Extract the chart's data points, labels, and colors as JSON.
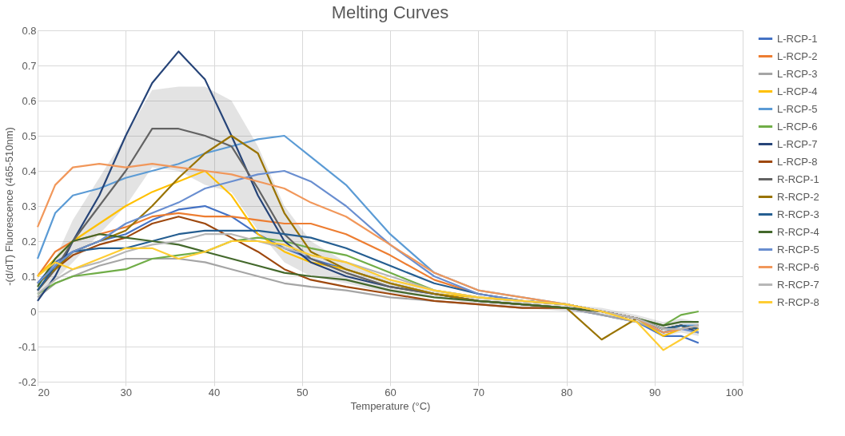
{
  "chart_data": {
    "type": "line",
    "title": "Melting Curves",
    "xlabel": "Temperature (°C)",
    "ylabel": "-(d/dT) Fluorescence (465-510nm)",
    "x": [
      20,
      22,
      24,
      27,
      30,
      33,
      36,
      39,
      42,
      45,
      48,
      51,
      55,
      60,
      65,
      70,
      75,
      80,
      84,
      88,
      91,
      93,
      95
    ],
    "xlim": [
      20,
      100
    ],
    "xticks": [
      20,
      30,
      40,
      50,
      60,
      70,
      80,
      90,
      100
    ],
    "ylim": [
      -0.2,
      0.8
    ],
    "yticks": [
      -0.2,
      -0.1,
      0,
      0.1,
      0.2,
      0.3,
      0.4,
      0.5,
      0.6,
      0.7,
      0.8
    ],
    "grid": true,
    "legend": "right",
    "line_style": "solid",
    "marker": "none",
    "series": [
      {
        "name": "L-RCP-1",
        "color": "#4472c4",
        "values": [
          0.08,
          0.14,
          0.17,
          0.2,
          0.22,
          0.26,
          0.29,
          0.3,
          0.27,
          0.22,
          0.18,
          0.15,
          0.12,
          0.08,
          0.05,
          0.03,
          0.02,
          0.01,
          -0.01,
          -0.03,
          -0.07,
          -0.07,
          -0.09
        ]
      },
      {
        "name": "L-RCP-2",
        "color": "#ed7d31",
        "values": [
          0.1,
          0.17,
          0.2,
          0.22,
          0.24,
          0.27,
          0.28,
          0.27,
          0.27,
          0.26,
          0.25,
          0.25,
          0.22,
          0.16,
          0.09,
          0.05,
          0.03,
          0.02,
          0,
          -0.02,
          -0.06,
          -0.05,
          -0.05
        ]
      },
      {
        "name": "L-RCP-3",
        "color": "#a5a5a5",
        "values": [
          0.04,
          0.08,
          0.1,
          0.13,
          0.15,
          0.15,
          0.15,
          0.14,
          0.12,
          0.1,
          0.08,
          0.07,
          0.06,
          0.04,
          0.03,
          0.02,
          0.01,
          0.01,
          -0.01,
          -0.03,
          -0.06,
          -0.05,
          -0.05
        ]
      },
      {
        "name": "L-RCP-4",
        "color": "#ffc000",
        "values": [
          0.1,
          0.15,
          0.2,
          0.25,
          0.3,
          0.34,
          0.37,
          0.4,
          0.33,
          0.22,
          0.17,
          0.14,
          0.12,
          0.08,
          0.05,
          0.04,
          0.03,
          0.02,
          0,
          -0.02,
          -0.07,
          -0.05,
          -0.04
        ]
      },
      {
        "name": "L-RCP-5",
        "color": "#5b9bd5",
        "values": [
          0.15,
          0.28,
          0.33,
          0.35,
          0.38,
          0.4,
          0.42,
          0.45,
          0.47,
          0.49,
          0.5,
          0.44,
          0.36,
          0.22,
          0.11,
          0.06,
          0.04,
          0.02,
          0,
          -0.02,
          -0.06,
          -0.04,
          -0.04
        ]
      },
      {
        "name": "L-RCP-6",
        "color": "#70ad47",
        "values": [
          0.05,
          0.08,
          0.1,
          0.11,
          0.12,
          0.15,
          0.16,
          0.17,
          0.2,
          0.21,
          0.2,
          0.18,
          0.16,
          0.11,
          0.06,
          0.04,
          0.03,
          0.02,
          0,
          -0.02,
          -0.04,
          -0.01,
          0
        ]
      },
      {
        "name": "L-RCP-7",
        "color": "#264478",
        "values": [
          0.03,
          0.1,
          0.2,
          0.33,
          0.5,
          0.65,
          0.74,
          0.66,
          0.5,
          0.33,
          0.2,
          0.14,
          0.1,
          0.07,
          0.05,
          0.03,
          0.02,
          0.01,
          0,
          -0.02,
          -0.05,
          -0.04,
          -0.06
        ]
      },
      {
        "name": "L-RCP-8",
        "color": "#9e480e",
        "values": [
          0.06,
          0.12,
          0.16,
          0.19,
          0.21,
          0.25,
          0.27,
          0.25,
          0.21,
          0.17,
          0.12,
          0.09,
          0.07,
          0.05,
          0.03,
          0.02,
          0.01,
          0.01,
          0,
          -0.02,
          -0.05,
          -0.04,
          -0.05
        ]
      },
      {
        "name": "R-RCP-1",
        "color": "#636363",
        "values": [
          0.06,
          0.12,
          0.2,
          0.3,
          0.4,
          0.52,
          0.52,
          0.5,
          0.47,
          0.35,
          0.22,
          0.15,
          0.11,
          0.07,
          0.05,
          0.03,
          0.02,
          0.01,
          0,
          -0.02,
          -0.05,
          -0.04,
          -0.05
        ],
        "lower": [
          0.04,
          0.09,
          0.14,
          0.22,
          0.3,
          0.41,
          0.4,
          0.36,
          0.34,
          0.23,
          0.14,
          0.1,
          0.08,
          0.05,
          0.04,
          0.02,
          0.01,
          0,
          -0.01,
          -0.03,
          -0.07,
          -0.06,
          -0.07
        ],
        "upper": [
          0.08,
          0.15,
          0.26,
          0.38,
          0.5,
          0.63,
          0.64,
          0.64,
          0.6,
          0.47,
          0.3,
          0.2,
          0.14,
          0.09,
          0.06,
          0.04,
          0.03,
          0.02,
          0.01,
          -0.01,
          -0.03,
          -0.02,
          -0.03
        ]
      },
      {
        "name": "R-RCP-2",
        "color": "#997300",
        "values": [
          0.08,
          0.12,
          0.17,
          0.2,
          0.23,
          0.3,
          0.38,
          0.45,
          0.5,
          0.45,
          0.28,
          0.17,
          0.12,
          0.08,
          0.05,
          0.03,
          0.02,
          0.01,
          -0.08,
          -0.02,
          -0.05,
          -0.04,
          -0.05
        ]
      },
      {
        "name": "R-RCP-3",
        "color": "#255e91",
        "values": [
          0.06,
          0.13,
          0.17,
          0.18,
          0.18,
          0.2,
          0.22,
          0.23,
          0.23,
          0.23,
          0.22,
          0.21,
          0.18,
          0.13,
          0.08,
          0.05,
          0.03,
          0.02,
          0,
          -0.02,
          -0.05,
          -0.04,
          -0.05
        ]
      },
      {
        "name": "R-RCP-4",
        "color": "#43682b",
        "values": [
          0.07,
          0.15,
          0.2,
          0.22,
          0.21,
          0.2,
          0.19,
          0.17,
          0.15,
          0.13,
          0.11,
          0.1,
          0.09,
          0.06,
          0.04,
          0.03,
          0.02,
          0.01,
          0,
          -0.02,
          -0.04,
          -0.03,
          -0.03
        ]
      },
      {
        "name": "R-RCP-5",
        "color": "#698ed0",
        "values": [
          0.08,
          0.13,
          0.17,
          0.2,
          0.25,
          0.28,
          0.31,
          0.35,
          0.37,
          0.39,
          0.4,
          0.37,
          0.3,
          0.19,
          0.1,
          0.05,
          0.03,
          0.02,
          0,
          -0.02,
          -0.06,
          -0.05,
          -0.06
        ]
      },
      {
        "name": "R-RCP-6",
        "color": "#f1975a",
        "values": [
          0.24,
          0.36,
          0.41,
          0.42,
          0.41,
          0.42,
          0.41,
          0.4,
          0.39,
          0.37,
          0.35,
          0.31,
          0.27,
          0.19,
          0.11,
          0.06,
          0.04,
          0.02,
          0,
          -0.02,
          -0.06,
          -0.05,
          -0.04
        ]
      },
      {
        "name": "R-RCP-7",
        "color": "#b7b7b7",
        "values": [
          0.05,
          0.09,
          0.12,
          0.14,
          0.17,
          0.19,
          0.2,
          0.22,
          0.22,
          0.2,
          0.18,
          0.16,
          0.14,
          0.1,
          0.06,
          0.04,
          0.03,
          0.02,
          0,
          -0.02,
          -0.05,
          -0.05,
          -0.04
        ]
      },
      {
        "name": "R-RCP-8",
        "color": "#ffcd33",
        "values": [
          0.1,
          0.14,
          0.12,
          0.15,
          0.18,
          0.18,
          0.15,
          0.17,
          0.2,
          0.2,
          0.19,
          0.16,
          0.14,
          0.09,
          0.06,
          0.04,
          0.03,
          0.02,
          0,
          -0.03,
          -0.11,
          -0.08,
          -0.05
        ]
      }
    ]
  }
}
